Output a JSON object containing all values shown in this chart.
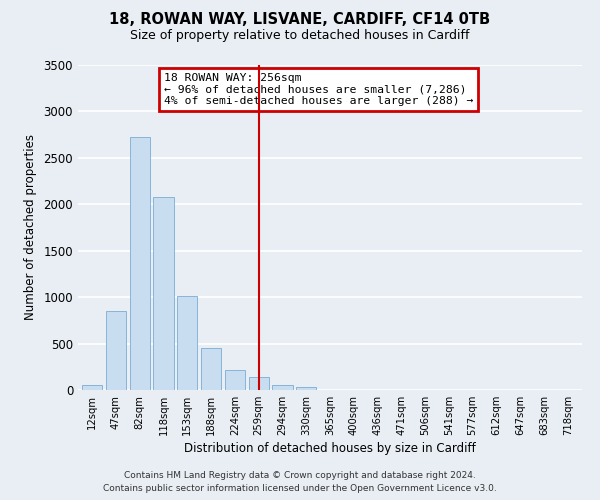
{
  "title": "18, ROWAN WAY, LISVANE, CARDIFF, CF14 0TB",
  "subtitle": "Size of property relative to detached houses in Cardiff",
  "xlabel": "Distribution of detached houses by size in Cardiff",
  "ylabel": "Number of detached properties",
  "bar_color": "#c8ddf0",
  "bar_edge_color": "#7aadd4",
  "categories": [
    "12sqm",
    "47sqm",
    "82sqm",
    "118sqm",
    "153sqm",
    "188sqm",
    "224sqm",
    "259sqm",
    "294sqm",
    "330sqm",
    "365sqm",
    "400sqm",
    "436sqm",
    "471sqm",
    "506sqm",
    "541sqm",
    "577sqm",
    "612sqm",
    "647sqm",
    "683sqm",
    "718sqm"
  ],
  "values": [
    55,
    850,
    2720,
    2075,
    1010,
    455,
    215,
    140,
    55,
    30,
    0,
    0,
    0,
    0,
    0,
    0,
    0,
    0,
    0,
    0,
    0
  ],
  "vline_x": 7,
  "vline_color": "#cc0000",
  "annotation_title": "18 ROWAN WAY: 256sqm",
  "annotation_line1": "← 96% of detached houses are smaller (7,286)",
  "annotation_line2": "4% of semi-detached houses are larger (288) →",
  "annotation_box_color": "#cc0000",
  "ylim": [
    0,
    3500
  ],
  "footer1": "Contains HM Land Registry data © Crown copyright and database right 2024.",
  "footer2": "Contains public sector information licensed under the Open Government Licence v3.0.",
  "background_color": "#e8eef4",
  "plot_background": "#e8eef4"
}
